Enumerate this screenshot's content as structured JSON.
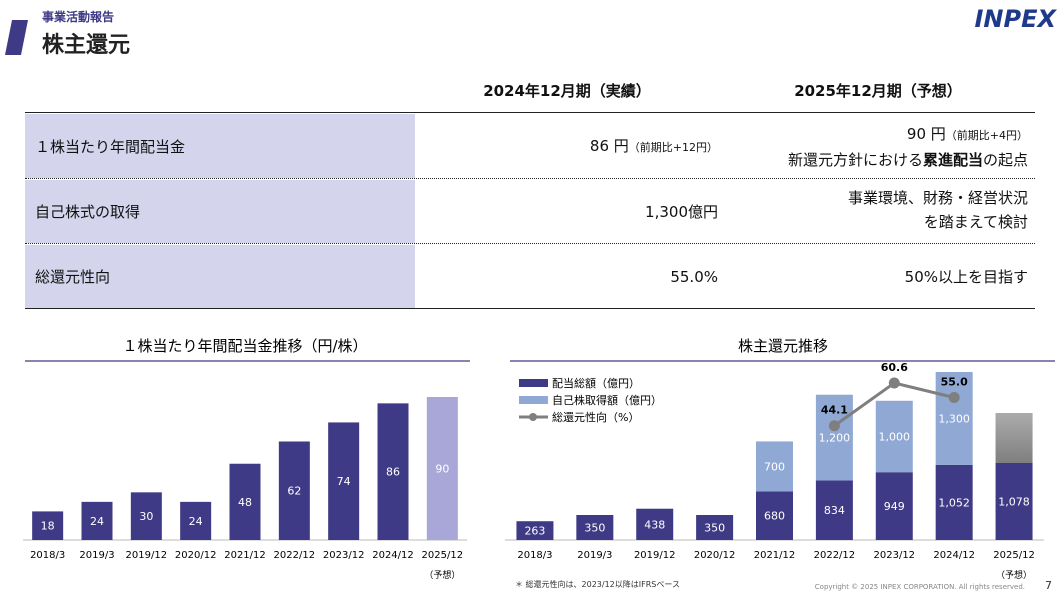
{
  "header": {
    "section": "事業活動報告",
    "title": "株主還元",
    "logo": "INPEX"
  },
  "table": {
    "columns": [
      "2024年12月期（実績）",
      "2025年12月期（予想）"
    ],
    "rows": [
      {
        "label": "１株当たり年間配当金",
        "cells": [
          {
            "main": "86 円",
            "note": "（前期比+12円）"
          },
          {
            "main": "90 円",
            "note": "（前期比+4円）",
            "line2": [
              "新還元方針における",
              "累進配当",
              "の起点"
            ]
          }
        ]
      },
      {
        "label": "自己株式の取得",
        "cells": [
          {
            "main": "1,300億円"
          },
          {
            "lines": [
              "事業環境、財務・経営状況",
              "を踏まえて検討"
            ]
          }
        ]
      },
      {
        "label": "総還元性向",
        "cells": [
          {
            "main": "55.0%"
          },
          {
            "main": "50%以上を目指す"
          }
        ]
      }
    ]
  },
  "chart_data": [
    {
      "type": "bar",
      "title": "１株当たり年間配当金推移（円/株）",
      "categories": [
        "2018/3",
        "2019/3",
        "2019/12",
        "2020/12",
        "2021/12",
        "2022/12",
        "2023/12",
        "2024/12",
        "2025/12"
      ],
      "forecast_note": "（予想）",
      "values": [
        18,
        24,
        30,
        24,
        48,
        62,
        74,
        86,
        90
      ],
      "colors": [
        "#3f3a85",
        "#3f3a85",
        "#3f3a85",
        "#3f3a85",
        "#3f3a85",
        "#3f3a85",
        "#3f3a85",
        "#3f3a85",
        "#a9a6d8"
      ]
    },
    {
      "type": "stacked_bar",
      "title": "株主還元推移",
      "categories": [
        "2018/3",
        "2019/3",
        "2019/12",
        "2020/12",
        "2021/12",
        "2022/12",
        "2023/12",
        "2024/12",
        "2025/12"
      ],
      "forecast_note": "（予想）",
      "forecast_placeholder_color": "#7f7f7f",
      "series": [
        {
          "name": "配当総額（億円）",
          "color": "#3f3a85",
          "values": [
            263,
            350,
            438,
            350,
            680,
            834,
            949,
            1052,
            1078
          ],
          "value_labels": [
            "263",
            "350",
            "438",
            "350",
            "680",
            "834",
            "949",
            "1,052",
            "1,078"
          ]
        },
        {
          "name": "自己株取得額（億円）",
          "color": "#8fa8d4",
          "values": [
            null,
            null,
            null,
            null,
            700,
            1200,
            1000,
            1300,
            null
          ],
          "value_labels": [
            null,
            null,
            null,
            null,
            "700",
            "1,200",
            "1,000",
            "1,300",
            null
          ]
        },
        {
          "name": "総還元性向（%）",
          "color": "#7f7f7f",
          "axis": "y2",
          "kind": "line",
          "values": [
            null,
            null,
            null,
            null,
            null,
            44.1,
            60.6,
            55.0,
            null
          ],
          "value_labels": [
            null,
            null,
            null,
            null,
            null,
            "44.1",
            "60.6",
            "55.0",
            null
          ]
        }
      ]
    }
  ],
  "footnote": "＊ 総還元性向は、2023/12以降はIFRSベース",
  "copyright": "Copyright © 2025 INPEX CORPORATION. All rights reserved.",
  "page": "7"
}
